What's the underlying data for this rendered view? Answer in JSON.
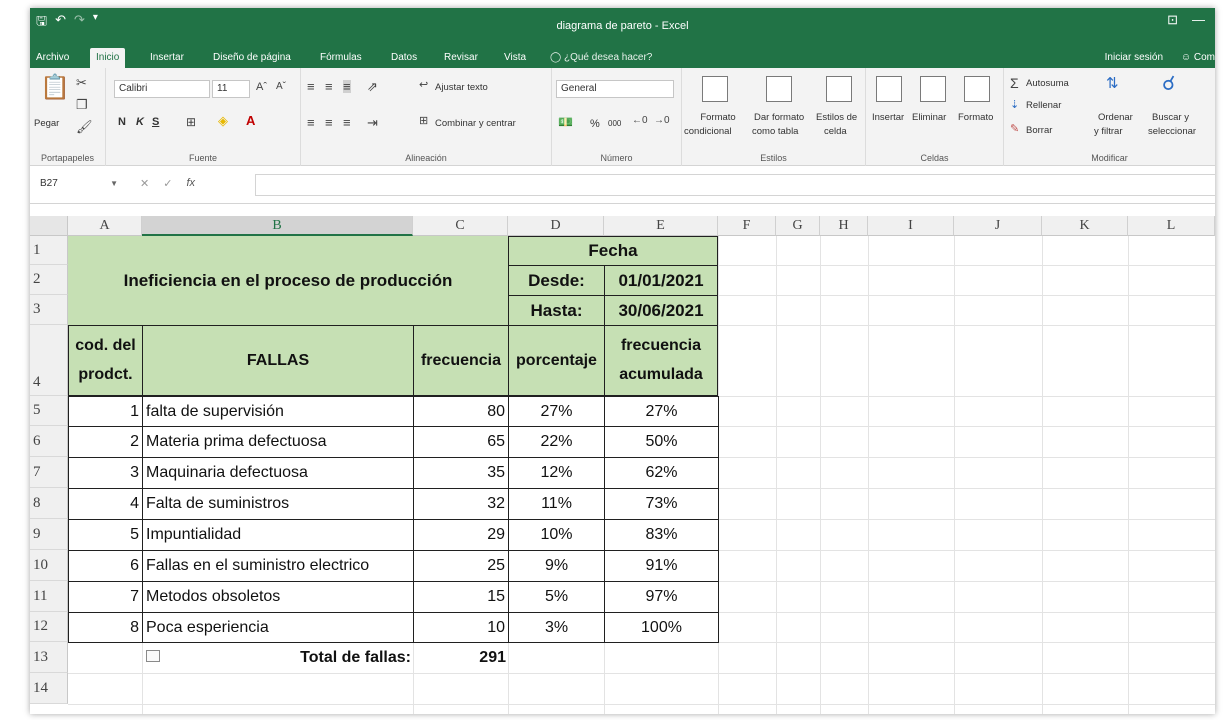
{
  "window": {
    "title": "diagrama de pareto - Excel",
    "window_buttons": [
      "⊡",
      "—"
    ]
  },
  "ribbon_tabs": [
    "Archivo",
    "Inicio",
    "Insertar",
    "Diseño de página",
    "Fórmulas",
    "Datos",
    "Revisar",
    "Vista"
  ],
  "tell_me": "¿Qué desea hacer?",
  "sign_in": "Iniciar sesión",
  "share": "Com",
  "ribbon": {
    "clipboard": {
      "paste": "Pegar",
      "label": "Portapapeles"
    },
    "font": {
      "name": "Calibri",
      "size": "11",
      "bold": "N",
      "italic": "K",
      "underline": "S",
      "label": "Fuente"
    },
    "alignment": {
      "wrap": "Ajustar texto",
      "merge": "Combinar y centrar",
      "label": "Alineación"
    },
    "number": {
      "format": "General",
      "percent": "%",
      "thousands": "000",
      "label": "Número"
    },
    "styles": {
      "conditional": [
        "Formato",
        "condicional"
      ],
      "as_table": [
        "Dar formato",
        "como tabla"
      ],
      "cell_styles": [
        "Estilos de",
        "celda"
      ],
      "label": "Estilos"
    },
    "cells": {
      "insert": "Insertar",
      "delete": "Eliminar",
      "format": "Formato",
      "label": "Celdas"
    },
    "editing": {
      "autosum": "Autosuma",
      "fill": "Rellenar",
      "clear": "Borrar",
      "sort": [
        "Ordenar",
        "y filtrar"
      ],
      "find": [
        "Buscar y",
        "seleccionar"
      ],
      "label": "Modificar"
    }
  },
  "formula_bar": {
    "name_box": "B27",
    "fx": "fx",
    "value": ""
  },
  "sheet": {
    "columns": [
      "A",
      "B",
      "C",
      "D",
      "E",
      "F",
      "G",
      "H",
      "I",
      "J",
      "K",
      "L"
    ],
    "rows": [
      "1",
      "2",
      "3",
      "4",
      "5",
      "6",
      "7",
      "8",
      "9",
      "10",
      "11",
      "12",
      "13",
      "14"
    ],
    "title": "Ineficiencia en el proceso de producción",
    "fecha_label": "Fecha",
    "desde_label": "Desde:",
    "desde_value": "01/01/2021",
    "hasta_label": "Hasta:",
    "hasta_value": "30/06/2021",
    "headers": {
      "code": "cod. del prodct.",
      "fallas": "FALLAS",
      "frecuencia": "frecuencia",
      "porcentaje": "porcentaje",
      "acumulada": "frecuencia acumulada"
    },
    "data": [
      {
        "code": "1",
        "falla": "falta de supervisión",
        "freq": "80",
        "pct": "27%",
        "cum": "27%"
      },
      {
        "code": "2",
        "falla": "Materia prima defectuosa",
        "freq": "65",
        "pct": "22%",
        "cum": "50%"
      },
      {
        "code": "3",
        "falla": "Maquinaria defectuosa",
        "freq": "35",
        "pct": "12%",
        "cum": "62%"
      },
      {
        "code": "4",
        "falla": "Falta de suministros",
        "freq": "32",
        "pct": "11%",
        "cum": "73%"
      },
      {
        "code": "5",
        "falla": "Impuntialidad",
        "freq": "29",
        "pct": "10%",
        "cum": "83%"
      },
      {
        "code": "6",
        "falla": "Fallas en el suministro electrico",
        "freq": "25",
        "pct": "9%",
        "cum": "91%"
      },
      {
        "code": "7",
        "falla": "Metodos obsoletos",
        "freq": "15",
        "pct": "5%",
        "cum": "97%"
      },
      {
        "code": "8",
        "falla": "Poca esperiencia",
        "freq": "10",
        "pct": "3%",
        "cum": "100%"
      }
    ],
    "total_label": "Total de fallas:",
    "total_value": "291"
  },
  "colors": {
    "excel_green": "#217346",
    "header_fill": "#c6e0b4"
  }
}
